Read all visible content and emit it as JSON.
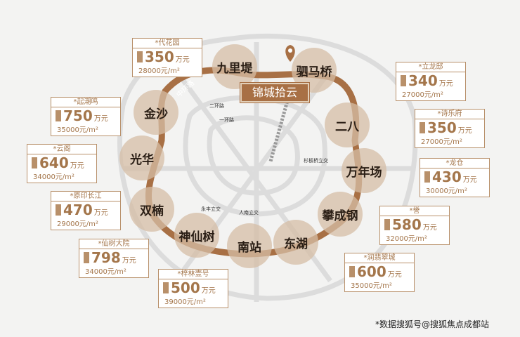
{
  "project": "锦城拾云",
  "ring_road": "中环路",
  "roads": [
    "二环路",
    "一环路"
  ],
  "interchanges": [
    "杉板桥立交",
    "永丰立交",
    "人南立交"
  ],
  "areas": [
    "九里堤",
    "驷马桥",
    "二八",
    "万年场",
    "攀成钢",
    "东湖",
    "南站",
    "神仙树",
    "双楠",
    "光华",
    "金沙"
  ],
  "projects": [
    {
      "name": "*代花园",
      "price": "350",
      "price_unit": "万元",
      "unit_price": "28000元/m²"
    },
    {
      "name": "*起潮鸣",
      "price": "750",
      "price_unit": "万元",
      "unit_price": "35000元/m²"
    },
    {
      "name": "*云阁",
      "price": "640",
      "price_unit": "万元",
      "unit_price": "34000元/m²"
    },
    {
      "name": "*原印长江",
      "price": "470",
      "price_unit": "万元",
      "unit_price": "29000元/m²"
    },
    {
      "name": "*仙树大院",
      "price": "798",
      "price_unit": "万元",
      "unit_price": "34000元/m²"
    },
    {
      "name": "*梓林壹号",
      "price": "500",
      "price_unit": "万元",
      "unit_price": "39000元/m²"
    },
    {
      "name": "*立龙邸",
      "price": "340",
      "price_unit": "万元",
      "unit_price": "27000元/m²"
    },
    {
      "name": "*诗乐府",
      "price": "350",
      "price_unit": "万元",
      "unit_price": "27000元/m²"
    },
    {
      "name": "*龙仓",
      "price": "430",
      "price_unit": "万元",
      "unit_price": "30000元/m²"
    },
    {
      "name": "*誉",
      "price": "580",
      "price_unit": "万元",
      "unit_price": "32000元/m²"
    },
    {
      "name": "*润翡翠城",
      "price": "600",
      "price_unit": "万元",
      "unit_price": "35000元/m²"
    }
  ],
  "footnote": "*数据搜狐号@搜狐焦点成都站",
  "colors": {
    "ring": "#a87045",
    "circle": "#d6bea6",
    "box_border": "#b8906a",
    "text_gold": "#a4764b"
  }
}
